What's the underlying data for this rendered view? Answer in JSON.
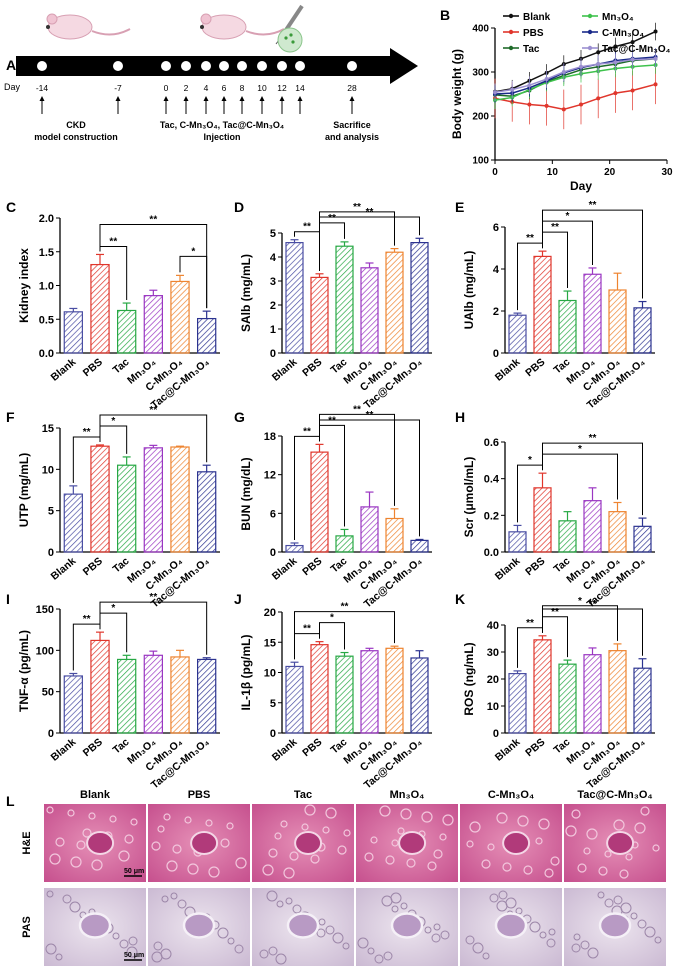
{
  "groups": [
    "Blank",
    "PBS",
    "Tac",
    "Mn3O4",
    "C-Mn3O4",
    "Tac@C-Mn3O4"
  ],
  "colors": [
    "#4a4ea3",
    "#e0362c",
    "#27a844",
    "#9a36c2",
    "#ee8430",
    "#2c3390"
  ],
  "panelA": {
    "letter": "A",
    "day_label": "Day",
    "days": [
      "-14",
      "-7",
      "0",
      "2",
      "4",
      "6",
      "8",
      "10",
      "12",
      "14",
      "28"
    ],
    "captions": {
      "ckd": [
        "CKD",
        "model construction"
      ],
      "injection": [
        "Tac, C-Mn₃O₄, Tac@C-Mn₃O₄",
        "Injection"
      ],
      "sacrifice": [
        "Sacrifice",
        "and analysis"
      ]
    }
  },
  "chart_data": [
    {
      "panel": "B",
      "type": "line",
      "ylabel": "Body weight (g)",
      "xlabel": "Day",
      "xlim": [
        0,
        30
      ],
      "ylim": [
        100,
        400
      ],
      "xticks": [
        "0",
        "10",
        "20",
        "30"
      ],
      "yticks": [
        "100",
        "200",
        "300",
        "400"
      ],
      "x": [
        0,
        3,
        6,
        9,
        12,
        15,
        18,
        21,
        24,
        28
      ],
      "legend": [
        "Blank",
        "PBS",
        "Tac",
        "Mn₃O₄",
        "C-Mn₃O₄",
        "Tac@C-Mn₃O₄"
      ],
      "series": [
        {
          "name": "Blank",
          "values": [
            255,
            262,
            280,
            298,
            318,
            330,
            345,
            358,
            368,
            392
          ]
        },
        {
          "name": "PBS",
          "values": [
            240,
            232,
            226,
            223,
            215,
            226,
            240,
            252,
            258,
            272
          ]
        },
        {
          "name": "Tac",
          "values": [
            248,
            245,
            258,
            278,
            292,
            305,
            312,
            318,
            326,
            330
          ]
        },
        {
          "name": "Mn₃O₄",
          "values": [
            236,
            242,
            260,
            276,
            288,
            296,
            302,
            308,
            312,
            316
          ]
        },
        {
          "name": "C-Mn₃O₄",
          "values": [
            250,
            252,
            264,
            280,
            298,
            310,
            318,
            326,
            330,
            334
          ]
        },
        {
          "name": "Tac@C-Mn₃O₄",
          "values": [
            254,
            260,
            270,
            284,
            300,
            312,
            318,
            322,
            328,
            330
          ]
        }
      ]
    },
    {
      "panel": "C",
      "type": "bar",
      "ylabel": "Kidney index",
      "ylim": [
        0,
        2.0
      ],
      "yticks": [
        "0.0",
        "0.5",
        "1.0",
        "1.5",
        "2.0"
      ],
      "values": [
        0.61,
        1.31,
        0.63,
        0.85,
        1.06,
        0.51
      ],
      "errors": [
        0.05,
        0.15,
        0.11,
        0.08,
        0.09,
        0.11
      ],
      "sig": [
        {
          "a": 1,
          "b": 2,
          "label": "**"
        },
        {
          "a": 4,
          "b": 5,
          "label": "*"
        },
        {
          "a": 1,
          "b": 5,
          "label": "**"
        }
      ]
    },
    {
      "panel": "D",
      "type": "bar",
      "ylabel": "SAlb (mg/mL)",
      "ylim": [
        0,
        5
      ],
      "yticks": [
        "0",
        "1",
        "2",
        "3",
        "4",
        "5"
      ],
      "values": [
        4.6,
        3.15,
        4.45,
        3.55,
        4.2,
        4.6
      ],
      "errors": [
        0.12,
        0.15,
        0.18,
        0.2,
        0.15,
        0.18
      ],
      "sig": [
        {
          "a": 0,
          "b": 1,
          "label": "**"
        },
        {
          "a": 1,
          "b": 2,
          "label": "**"
        },
        {
          "a": 1,
          "b": 4,
          "label": "**"
        },
        {
          "a": 1,
          "b": 5,
          "label": "**"
        }
      ]
    },
    {
      "panel": "E",
      "type": "bar",
      "ylabel": "UAlb (mg/mL)",
      "ylim": [
        0,
        6
      ],
      "yticks": [
        "0",
        "2",
        "4",
        "6"
      ],
      "values": [
        1.8,
        4.6,
        2.5,
        3.75,
        3.0,
        2.15
      ],
      "errors": [
        0.1,
        0.25,
        0.45,
        0.3,
        0.8,
        0.3
      ],
      "sig": [
        {
          "a": 0,
          "b": 1,
          "label": "**"
        },
        {
          "a": 1,
          "b": 2,
          "label": "**"
        },
        {
          "a": 1,
          "b": 3,
          "label": "*"
        },
        {
          "a": 1,
          "b": 5,
          "label": "**"
        }
      ]
    },
    {
      "panel": "F",
      "type": "bar",
      "ylabel": "UTP (mg/mL)",
      "ylim": [
        0,
        15
      ],
      "yticks": [
        "0",
        "5",
        "10",
        "15"
      ],
      "values": [
        7.0,
        12.8,
        10.5,
        12.6,
        12.7,
        9.7
      ],
      "errors": [
        1.0,
        0.15,
        1.0,
        0.3,
        0.1,
        0.8
      ],
      "sig": [
        {
          "a": 0,
          "b": 1,
          "label": "**"
        },
        {
          "a": 1,
          "b": 2,
          "label": "*"
        },
        {
          "a": 1,
          "b": 5,
          "label": "**"
        }
      ]
    },
    {
      "panel": "G",
      "type": "bar",
      "ylabel": "BUN (mg/dL)",
      "ylim": [
        0,
        18
      ],
      "yticks": [
        "0",
        "6",
        "12",
        "18"
      ],
      "values": [
        1.0,
        15.5,
        2.5,
        7.0,
        5.2,
        1.8
      ],
      "errors": [
        0.4,
        1.2,
        1.0,
        2.3,
        1.5,
        0.15
      ],
      "sig": [
        {
          "a": 0,
          "b": 1,
          "label": "**"
        },
        {
          "a": 1,
          "b": 2,
          "label": "**"
        },
        {
          "a": 1,
          "b": 4,
          "label": "**"
        },
        {
          "a": 1,
          "b": 5,
          "label": "**"
        }
      ]
    },
    {
      "panel": "H",
      "type": "bar",
      "ylabel": "Scr (μmol/mL)",
      "ylim": [
        0,
        0.6
      ],
      "yticks": [
        "0.0",
        "0.2",
        "0.4",
        "0.6"
      ],
      "values": [
        0.11,
        0.35,
        0.17,
        0.28,
        0.22,
        0.14
      ],
      "errors": [
        0.035,
        0.08,
        0.05,
        0.07,
        0.05,
        0.045
      ],
      "sig": [
        {
          "a": 0,
          "b": 1,
          "label": "*"
        },
        {
          "a": 1,
          "b": 4,
          "label": "*"
        },
        {
          "a": 1,
          "b": 5,
          "label": "**"
        }
      ]
    },
    {
      "panel": "I",
      "type": "bar",
      "ylabel": "TNF-α (pg/mL)",
      "ylim": [
        0,
        150
      ],
      "yticks": [
        "0",
        "50",
        "100",
        "150"
      ],
      "values": [
        69,
        112,
        89,
        94,
        92,
        89
      ],
      "errors": [
        3,
        10,
        5,
        5,
        8,
        2
      ],
      "sig": [
        {
          "a": 0,
          "b": 1,
          "label": "**"
        },
        {
          "a": 1,
          "b": 2,
          "label": "*"
        },
        {
          "a": 1,
          "b": 5,
          "label": "**"
        }
      ]
    },
    {
      "panel": "J",
      "type": "bar",
      "ylabel": "IL-1β (pg/mL)",
      "ylim": [
        0,
        20
      ],
      "yticks": [
        "0",
        "5",
        "10",
        "15",
        "20"
      ],
      "values": [
        11.0,
        14.6,
        12.7,
        13.6,
        14.0,
        12.4
      ],
      "errors": [
        0.7,
        0.5,
        0.6,
        0.4,
        0.35,
        1.2
      ],
      "sig": [
        {
          "a": 0,
          "b": 1,
          "label": "**"
        },
        {
          "a": 1,
          "b": 2,
          "label": "*"
        },
        {
          "a": 0,
          "b": 4,
          "label": "**"
        }
      ]
    },
    {
      "panel": "K",
      "type": "bar",
      "ylabel": "ROS (ng/mL)",
      "ylim": [
        0,
        40
      ],
      "yticks": [
        "0",
        "10",
        "20",
        "30",
        "40"
      ],
      "values": [
        22,
        34.5,
        25.5,
        29,
        30.5,
        24
      ],
      "errors": [
        1,
        1.5,
        1.5,
        2.5,
        2.5,
        3.5
      ],
      "sig": [
        {
          "a": 0,
          "b": 1,
          "label": "**"
        },
        {
          "a": 1,
          "b": 2,
          "label": "**"
        },
        {
          "a": 1,
          "b": 4,
          "label": "*"
        },
        {
          "a": 1,
          "b": 5,
          "label": "**"
        }
      ]
    }
  ],
  "panelL": {
    "letter": "L",
    "columns": [
      "Blank",
      "PBS",
      "Tac",
      "Mn₃O₄",
      "C-Mn₃O₄",
      "Tac@C-Mn₃O₄"
    ],
    "rows": [
      "H&E",
      "PAS"
    ],
    "scale": "50 μm"
  }
}
